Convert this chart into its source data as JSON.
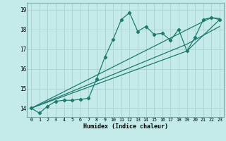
{
  "xlabel": "Humidex (Indice chaleur)",
  "xlim": [
    -0.5,
    23.5
  ],
  "ylim": [
    13.55,
    19.35
  ],
  "xticks": [
    0,
    1,
    2,
    3,
    4,
    5,
    6,
    7,
    8,
    9,
    10,
    11,
    12,
    13,
    14,
    15,
    16,
    17,
    18,
    19,
    20,
    21,
    22,
    23
  ],
  "yticks": [
    14,
    15,
    16,
    17,
    18,
    19
  ],
  "bg_color": "#c5eaea",
  "grid_color": "#afd4d4",
  "line_color": "#1e7b6e",
  "line1_x": [
    0,
    1,
    2,
    3,
    4,
    5,
    6,
    7,
    8,
    9,
    10,
    11,
    12,
    13,
    14,
    15,
    16,
    17,
    18,
    19,
    20,
    21,
    22,
    23
  ],
  "line1_y": [
    14.0,
    13.75,
    14.1,
    14.35,
    14.4,
    14.4,
    14.45,
    14.5,
    15.5,
    16.6,
    17.5,
    18.5,
    18.85,
    17.9,
    18.15,
    17.75,
    17.8,
    17.45,
    18.0,
    16.9,
    17.6,
    18.5,
    18.6,
    18.5
  ],
  "line2_x": [
    0,
    21,
    22,
    23
  ],
  "line2_y": [
    14.0,
    18.4,
    18.6,
    18.55
  ],
  "line3_x": [
    0,
    19,
    23
  ],
  "line3_y": [
    14.0,
    16.9,
    18.5
  ],
  "line4_x": [
    0,
    19,
    23
  ],
  "line4_y": [
    14.0,
    17.25,
    18.15
  ]
}
